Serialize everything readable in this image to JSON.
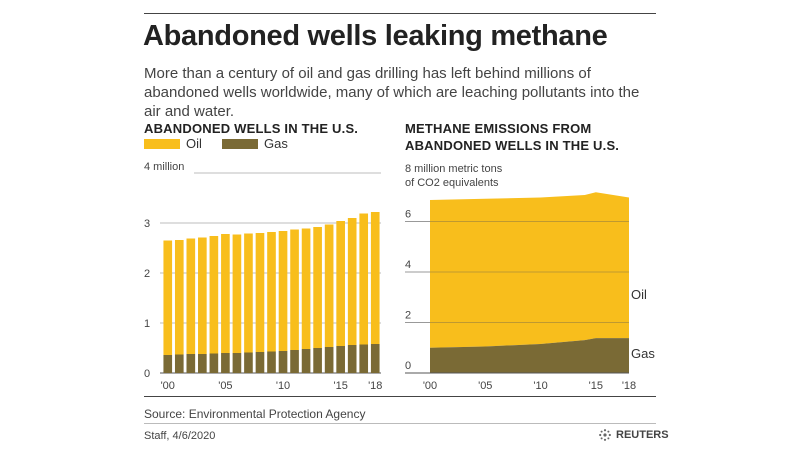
{
  "title": "Abandoned wells leaking methane",
  "subtitle": "More than a century of oil and gas drilling has left behind millions of abandoned wells worldwide, many of which are leaching pollutants into the air and water.",
  "legend": {
    "oil": "Oil",
    "gas": "Gas"
  },
  "colors": {
    "oil": "#f8be1c",
    "gas": "#7a6a35",
    "rule": "#444444"
  },
  "source": "Source: Environmental Protection Agency",
  "credit": "Staff, 4/6/2020",
  "brand": "REUTERS",
  "chart_data": [
    {
      "type": "bar",
      "stacked": true,
      "title": "ABANDONED WELLS IN THE U.S.",
      "unit_label": "4 million",
      "ylim": [
        0,
        4
      ],
      "yticks": [
        "0",
        "1",
        "2",
        "3"
      ],
      "xtick_labels": [
        "'00",
        "'05",
        "'10",
        "'15",
        "'18"
      ],
      "xtick_years": [
        2000,
        2005,
        2010,
        2015,
        2018
      ],
      "categories": [
        2000,
        2001,
        2002,
        2003,
        2004,
        2005,
        2006,
        2007,
        2008,
        2009,
        2010,
        2011,
        2012,
        2013,
        2014,
        2015,
        2016,
        2017,
        2018
      ],
      "series": [
        {
          "name": "Gas",
          "values": [
            0.36,
            0.37,
            0.38,
            0.38,
            0.39,
            0.4,
            0.4,
            0.41,
            0.42,
            0.43,
            0.44,
            0.46,
            0.48,
            0.5,
            0.52,
            0.54,
            0.56,
            0.57,
            0.58
          ]
        },
        {
          "name": "Oil",
          "values": [
            2.29,
            2.29,
            2.31,
            2.33,
            2.35,
            2.38,
            2.37,
            2.38,
            2.38,
            2.39,
            2.4,
            2.41,
            2.41,
            2.42,
            2.45,
            2.5,
            2.54,
            2.62,
            2.64
          ]
        }
      ]
    },
    {
      "type": "area",
      "stacked": true,
      "title": "METHANE EMISSIONS FROM ABANDONED WELLS IN THE U.S.",
      "unit_label_line1": "8 million metric tons",
      "unit_label_line2": "of CO2 equivalents",
      "ylim": [
        0,
        8
      ],
      "yticks": [
        "0",
        "2",
        "4",
        "6"
      ],
      "xtick_labels": [
        "'00",
        "'05",
        "'10",
        "'15",
        "'18"
      ],
      "xtick_years": [
        2000,
        2005,
        2010,
        2015,
        2018
      ],
      "x": [
        2000,
        2005,
        2010,
        2014,
        2015,
        2018
      ],
      "series": [
        {
          "name": "Gas",
          "values": [
            1.0,
            1.05,
            1.15,
            1.3,
            1.38,
            1.38
          ]
        },
        {
          "name": "Oil",
          "values": [
            5.85,
            5.85,
            5.8,
            5.75,
            5.78,
            5.57
          ]
        }
      ],
      "series_labels": {
        "oil": "Oil",
        "gas": "Gas"
      }
    }
  ]
}
